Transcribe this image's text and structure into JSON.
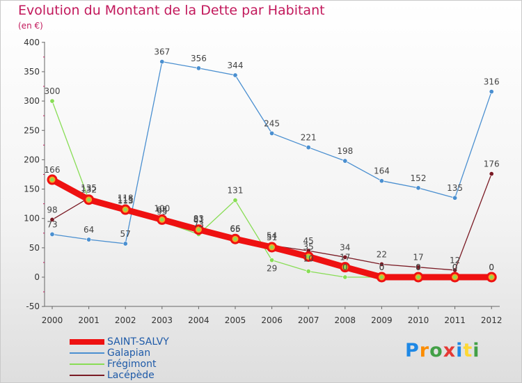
{
  "chart_data": {
    "type": "line",
    "title": "Evolution du Montant de la Dette par Habitant",
    "subtitle": "(en €)",
    "xlabel": "",
    "ylabel": "",
    "categories": [
      "2000",
      "2001",
      "2002",
      "2003",
      "2004",
      "2005",
      "2006",
      "2007",
      "2008",
      "2009",
      "2010",
      "2011",
      "2012"
    ],
    "ylim": [
      -50,
      400
    ],
    "yticks": [
      "-50",
      "0",
      "50",
      "100",
      "150",
      "200",
      "250",
      "300",
      "350",
      "400"
    ],
    "grid": false,
    "legend_position": "bottom-left",
    "series": [
      {
        "name": "SAINT-SALVY",
        "color": "#ee1111",
        "values": [
          166,
          132,
          115,
          98,
          81,
          65,
          51,
          35,
          17,
          0,
          0,
          0,
          0
        ]
      },
      {
        "name": "Galapian",
        "color": "#4a8fd0",
        "values": [
          73,
          64,
          57,
          367,
          356,
          344,
          245,
          221,
          198,
          164,
          152,
          135,
          316
        ]
      },
      {
        "name": "Frégimont",
        "color": "#88dd55",
        "values": [
          300,
          132,
          113,
          95,
          73,
          131,
          29,
          10,
          0,
          0,
          0,
          0,
          0
        ]
      },
      {
        "name": "Lacépède",
        "color": "#7a1a24",
        "values": [
          98,
          135,
          118,
          100,
          83,
          66,
          54,
          45,
          34,
          22,
          17,
          12,
          176
        ]
      }
    ]
  },
  "logo": {
    "letters": [
      "P",
      "r",
      "o",
      "x",
      "i",
      "t",
      "i"
    ],
    "colors": [
      "#1e88e5",
      "#fb8c00",
      "#43a047",
      "#e53935",
      "#1e88e5",
      "#fdd835",
      "#43a047"
    ]
  }
}
